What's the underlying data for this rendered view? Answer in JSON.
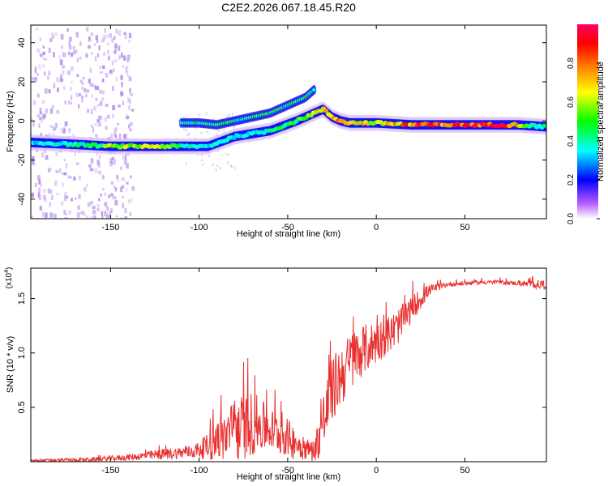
{
  "figure_title": "C2E2.2026.067.18.45.R20",
  "chart_data": [
    {
      "type": "heatmap",
      "title": "C2E2.2026.067.18.45.R20",
      "xlabel": "Height of straight line (km)",
      "ylabel": "Frequency (Hz)",
      "xlim": [
        -195,
        96
      ],
      "ylim": [
        -50,
        49
      ],
      "x_ticks": [
        -150,
        -100,
        -50,
        0,
        50
      ],
      "y_ticks": [
        -40,
        -20,
        0,
        20,
        40
      ],
      "colorbar": {
        "label": "Normalized spectral amplitude",
        "range": [
          0,
          1
        ],
        "ticks": [
          "0.0",
          "0.2",
          "0.4",
          "0.6",
          "0.8"
        ],
        "tick_values": [
          0.0,
          0.2,
          0.4,
          0.6,
          0.8
        ],
        "colors": [
          "#ffffff",
          "#b45cff",
          "#0000ff",
          "#00ffff",
          "#00ff00",
          "#ffff00",
          "#ff8000",
          "#ff0000",
          "#ff0060"
        ]
      },
      "ridge_main": {
        "x": [
          -195,
          -170,
          -150,
          -130,
          -115,
          -105,
          -95,
          -80,
          -60,
          -45,
          -35,
          -30,
          -25,
          -20,
          -15,
          0,
          20,
          50,
          80,
          96
        ],
        "y": [
          -11,
          -12,
          -13,
          -13,
          -13,
          -13,
          -13,
          -8,
          -5,
          0,
          4,
          6,
          2,
          0,
          -1,
          -1,
          -2,
          -2,
          -2,
          -3
        ]
      },
      "ridge_upper": {
        "x": [
          -110,
          -100,
          -90,
          -80,
          -70,
          -60,
          -50,
          -40,
          -35
        ],
        "y": [
          -1,
          -1,
          -2,
          0,
          2,
          4,
          8,
          12,
          16
        ]
      },
      "color_scale": [
        {
          "x": -195,
          "v": 0.35
        },
        {
          "x": -160,
          "v": 0.45
        },
        {
          "x": -150,
          "v": 0.6
        },
        {
          "x": -140,
          "v": 0.65
        },
        {
          "x": -120,
          "v": 0.6
        },
        {
          "x": -100,
          "v": 0.35
        },
        {
          "x": -80,
          "v": 0.4
        },
        {
          "x": -60,
          "v": 0.45
        },
        {
          "x": -40,
          "v": 0.55
        },
        {
          "x": -30,
          "v": 0.7
        },
        {
          "x": -20,
          "v": 0.75
        },
        {
          "x": 0,
          "v": 0.7
        },
        {
          "x": 20,
          "v": 0.85
        },
        {
          "x": 50,
          "v": 0.95
        },
        {
          "x": 75,
          "v": 0.9
        },
        {
          "x": 85,
          "v": 0.55
        },
        {
          "x": 96,
          "v": 0.4
        }
      ]
    },
    {
      "type": "line",
      "xlabel": "Height of straight line (km)",
      "ylabel": "SNR (10 * v/v)",
      "y_multiplier": "(x10",
      "y_multiplier_exp": "4",
      "y_multiplier_close": ")",
      "xlim": [
        -195,
        96
      ],
      "ylim": [
        0,
        1.78
      ],
      "x_ticks": [
        -150,
        -100,
        -50,
        0,
        50
      ],
      "y_ticks": [
        0.5,
        1.0,
        1.5
      ],
      "y_tick_labels": [
        "0.5",
        "1.0",
        "1.5"
      ],
      "series_color": "#e83030",
      "envelope": {
        "x": [
          -195,
          -160,
          -140,
          -120,
          -105,
          -100,
          -95,
          -90,
          -80,
          -70,
          -60,
          -50,
          -45,
          -40,
          -35,
          -30,
          -25,
          -20,
          -15,
          -10,
          -5,
          0,
          5,
          10,
          15,
          20,
          25,
          30,
          40,
          50,
          60,
          70,
          80,
          90,
          96
        ],
        "mean": [
          0.01,
          0.02,
          0.04,
          0.07,
          0.09,
          0.11,
          0.14,
          0.2,
          0.28,
          0.35,
          0.3,
          0.22,
          0.16,
          0.12,
          0.1,
          0.35,
          0.65,
          0.8,
          0.9,
          1.0,
          1.05,
          1.1,
          1.15,
          1.2,
          1.3,
          1.4,
          1.5,
          1.58,
          1.63,
          1.64,
          1.65,
          1.65,
          1.64,
          1.63,
          1.63
        ],
        "amp": [
          0.01,
          0.02,
          0.03,
          0.05,
          0.06,
          0.08,
          0.12,
          0.2,
          0.3,
          0.3,
          0.2,
          0.18,
          0.15,
          0.1,
          0.1,
          0.3,
          0.3,
          0.3,
          0.28,
          0.25,
          0.22,
          0.2,
          0.18,
          0.18,
          0.15,
          0.12,
          0.1,
          0.05,
          0.02,
          0.02,
          0.02,
          0.02,
          0.02,
          0.04,
          0.05
        ]
      }
    }
  ]
}
